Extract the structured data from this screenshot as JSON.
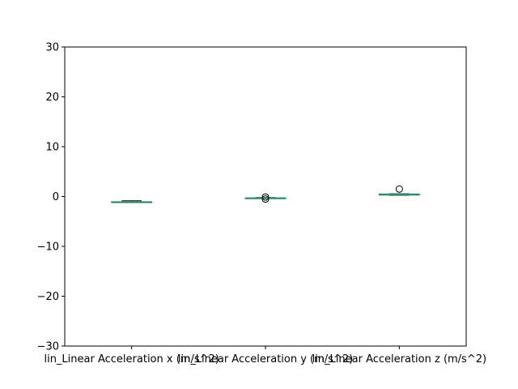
{
  "chart_data": {
    "type": "box",
    "title": "",
    "xlabel": "",
    "ylabel": "",
    "ylim": [
      -30,
      30
    ],
    "yticks": [
      -30,
      -20,
      -10,
      0,
      10,
      20,
      30
    ],
    "grid": false,
    "categories": [
      "lin_Linear Acceleration x (m/s^2)",
      "lin_Linear Acceleration y (m/s^2)",
      "lin_Linear Acceleration z (m/s^2)"
    ],
    "boxes": [
      {
        "whisker_low": -1.2,
        "q1": -1.12,
        "median": -1.1,
        "q3": -1.05,
        "whisker_high": -0.85,
        "outliers": []
      },
      {
        "whisker_low": -0.4,
        "q1": -0.33,
        "median": -0.3,
        "q3": -0.27,
        "whisker_high": -0.2,
        "outliers": [
          -0.5,
          -0.1
        ]
      },
      {
        "whisker_low": 0.25,
        "q1": 0.3,
        "median": 0.35,
        "q3": 0.5,
        "whisker_high": 0.55,
        "outliers": [
          1.5
        ]
      }
    ],
    "colors": {
      "box": "#1f77b4",
      "median": "#2ca02c",
      "whisker": "#000000",
      "outlier": "#000000"
    }
  }
}
